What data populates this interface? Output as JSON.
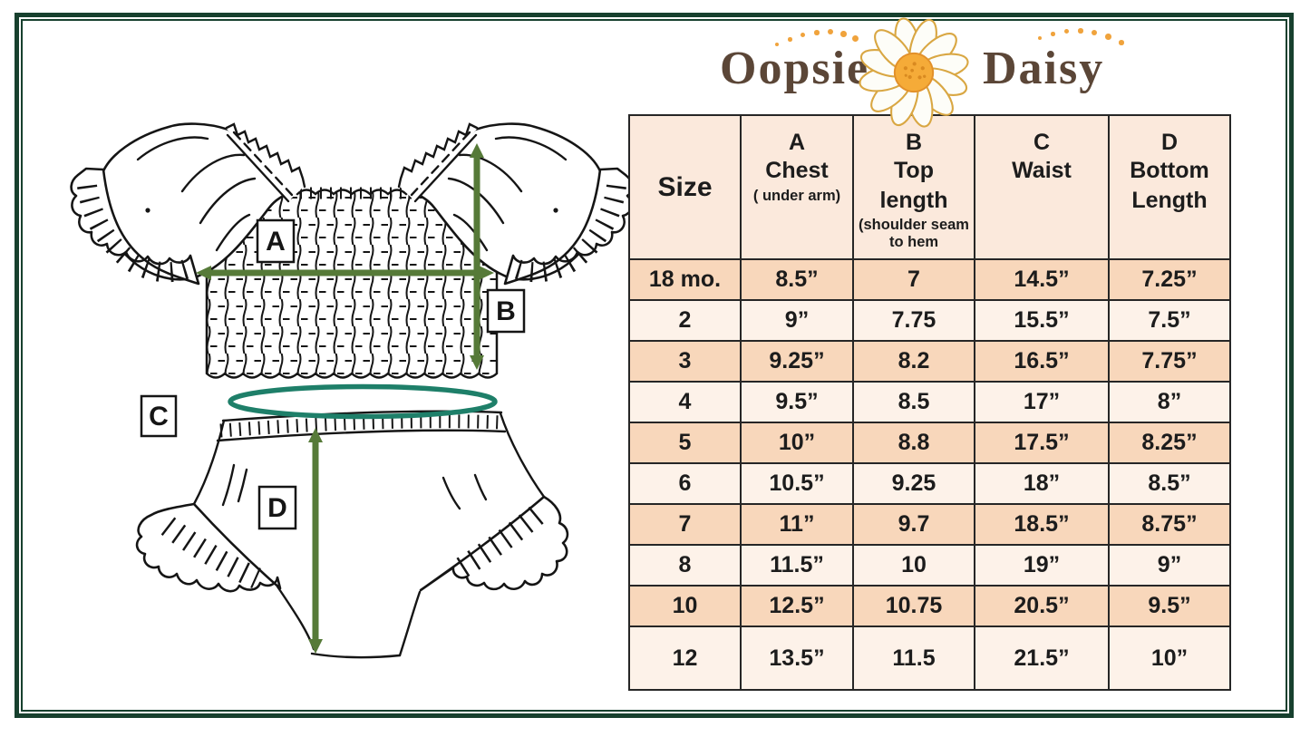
{
  "logo": {
    "word1": "Oopsie",
    "word2": "Daisy"
  },
  "diagram": {
    "labels": {
      "a": "A",
      "b": "B",
      "c": "C",
      "d": "D"
    }
  },
  "size_chart": {
    "columns": [
      {
        "label": "Size"
      },
      {
        "letter": "A",
        "name": "Chest",
        "note": "( under arm)"
      },
      {
        "letter": "B",
        "name": "Top\nlength",
        "note": "(shoulder seam to hem"
      },
      {
        "letter": "C",
        "name": "Waist"
      },
      {
        "letter": "D",
        "name": "Bottom\nLength"
      }
    ],
    "rows": [
      [
        "18 mo.",
        "8.5”",
        "7",
        "14.5”",
        "7.25”"
      ],
      [
        "2",
        "9”",
        "7.75",
        "15.5”",
        "7.5”"
      ],
      [
        "3",
        "9.25”",
        "8.2",
        "16.5”",
        "7.75”"
      ],
      [
        "4",
        "9.5”",
        "8.5",
        "17”",
        "8”"
      ],
      [
        "5",
        "10”",
        "8.8",
        "17.5”",
        "8.25”"
      ],
      [
        "6",
        "10.5”",
        "9.25",
        "18”",
        "8.5”"
      ],
      [
        "7",
        "11”",
        "9.7",
        "18.5”",
        "8.75”"
      ],
      [
        "8",
        "11.5”",
        "10",
        "19”",
        "9”"
      ],
      [
        "10",
        "12.5”",
        "10.75",
        "20.5”",
        "9.5”"
      ],
      [
        "12",
        "13.5”",
        "11.5",
        "21.5”",
        "10”"
      ]
    ]
  },
  "colors": {
    "frame_green": "#17402e",
    "arrow_green": "#567a38",
    "waist_teal": "#1e7f69",
    "table_border": "#262626",
    "header_bg": "#fbe9dc",
    "row_peach": "#f8d7bb",
    "row_cream": "#fdf2e9",
    "text_dark": "#1c1c1c",
    "brand_brown": "#5b4637",
    "daisy_orange": "#f0a33c"
  }
}
